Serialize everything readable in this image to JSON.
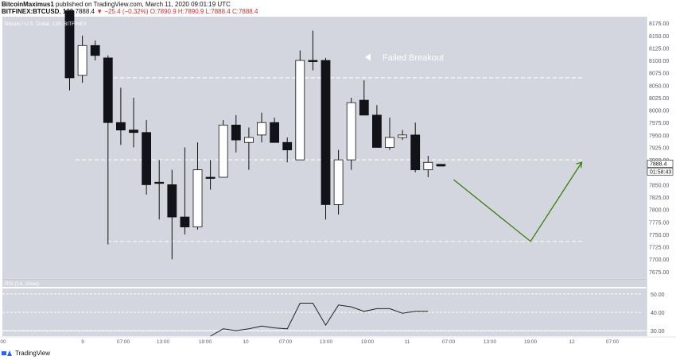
{
  "header": {
    "author": "BitcoinMaximus1",
    "published": "published on TradingView.com, March 11, 2020 09:01:19 UTC",
    "symbol": "BITFINEX:BTCUSD",
    "interval": "120",
    "last": "7888.4",
    "change": "−25.4 (−0.32%)",
    "ohlc": "O:7890.9 H:7890.9 L:7888.4 C:7888.4"
  },
  "footer": {
    "brand": "TradingView"
  },
  "chart_data": [
    {
      "type": "candlestick",
      "title": "Bitcoin / U.S. Dollar, 120, BITFINEX",
      "ylim": [
        7662,
        8188
      ],
      "ticks": [
        8175,
        8150,
        8125,
        8100,
        8075,
        8050,
        8025,
        8000,
        7975,
        7950,
        7925,
        7900,
        7875,
        7850,
        7825,
        7800,
        7775,
        7750,
        7725,
        7700,
        7675
      ],
      "x_ticks": [
        "00",
        "9",
        "07:00",
        "13:00",
        "19:00",
        "10",
        "07:00",
        "13:00",
        "19:00",
        "11",
        "07:00",
        "13:00",
        "19:00",
        "12",
        "07:00"
      ],
      "last_price_label": "7888.4",
      "countdown_label": "01:58:43",
      "annotation": "Failed Breakout",
      "candles": [
        {
          "o": 8200,
          "h": 8200,
          "l": 8040,
          "c": 8065
        },
        {
          "o": 8070,
          "h": 8150,
          "l": 8055,
          "c": 8130
        },
        {
          "o": 8130,
          "h": 8140,
          "l": 8100,
          "c": 8110
        },
        {
          "o": 8105,
          "h": 8110,
          "l": 7730,
          "c": 7975
        },
        {
          "o": 7975,
          "h": 8045,
          "l": 7930,
          "c": 7960
        },
        {
          "o": 7960,
          "h": 8025,
          "l": 7925,
          "c": 7955
        },
        {
          "o": 7955,
          "h": 7980,
          "l": 7830,
          "c": 7850
        },
        {
          "o": 7855,
          "h": 7900,
          "l": 7780,
          "c": 7855
        },
        {
          "o": 7850,
          "h": 7880,
          "l": 7700,
          "c": 7785
        },
        {
          "o": 7785,
          "h": 7925,
          "l": 7750,
          "c": 7765
        },
        {
          "o": 7765,
          "h": 7935,
          "l": 7760,
          "c": 7880
        },
        {
          "o": 7865,
          "h": 7900,
          "l": 7840,
          "c": 7865
        },
        {
          "o": 7865,
          "h": 7980,
          "l": 7865,
          "c": 7970
        },
        {
          "o": 7970,
          "h": 7990,
          "l": 7915,
          "c": 7940
        },
        {
          "o": 7935,
          "h": 7965,
          "l": 7880,
          "c": 7945
        },
        {
          "o": 7950,
          "h": 7995,
          "l": 7935,
          "c": 7975
        },
        {
          "o": 7975,
          "h": 7985,
          "l": 7935,
          "c": 7935
        },
        {
          "o": 7935,
          "h": 7945,
          "l": 7895,
          "c": 7920
        },
        {
          "o": 7900,
          "h": 8120,
          "l": 7900,
          "c": 8100
        },
        {
          "o": 8100,
          "h": 8160,
          "l": 8080,
          "c": 8100
        },
        {
          "o": 8100,
          "h": 8105,
          "l": 7780,
          "c": 7810
        },
        {
          "o": 7810,
          "h": 7920,
          "l": 7790,
          "c": 7900
        },
        {
          "o": 7900,
          "h": 8025,
          "l": 7880,
          "c": 8015
        },
        {
          "o": 8020,
          "h": 8060,
          "l": 7990,
          "c": 7990
        },
        {
          "o": 7990,
          "h": 8010,
          "l": 7925,
          "c": 7925
        },
        {
          "o": 7925,
          "h": 7985,
          "l": 7920,
          "c": 7945
        },
        {
          "o": 7945,
          "h": 7960,
          "l": 7940,
          "c": 7950
        },
        {
          "o": 7950,
          "h": 7975,
          "l": 7875,
          "c": 7880
        },
        {
          "o": 7880,
          "h": 7908,
          "l": 7865,
          "c": 7895
        },
        {
          "o": 7890.9,
          "h": 7890.9,
          "l": 7888.4,
          "c": 7888.4
        }
      ],
      "levels": [
        8065,
        7900,
        7736
      ],
      "projection": [
        {
          "candle_index": 30,
          "price": 7860
        },
        {
          "candle_index": 36,
          "price": 7736
        },
        {
          "candle_index": 40,
          "price": 7895
        }
      ]
    },
    {
      "type": "line",
      "title": "RSI (14, close)",
      "ylim": [
        27,
        53
      ],
      "ticks": [
        50,
        40,
        30
      ],
      "tick_labels": [
        "50.00",
        "40.00",
        "30.00"
      ],
      "band": [
        30,
        50
      ],
      "start_index": 11,
      "values": [
        24,
        31,
        30,
        31,
        32.5,
        31.5,
        31,
        45,
        45,
        33,
        44,
        43,
        40.5,
        42,
        42,
        39.5,
        40.5,
        40.5
      ]
    }
  ]
}
